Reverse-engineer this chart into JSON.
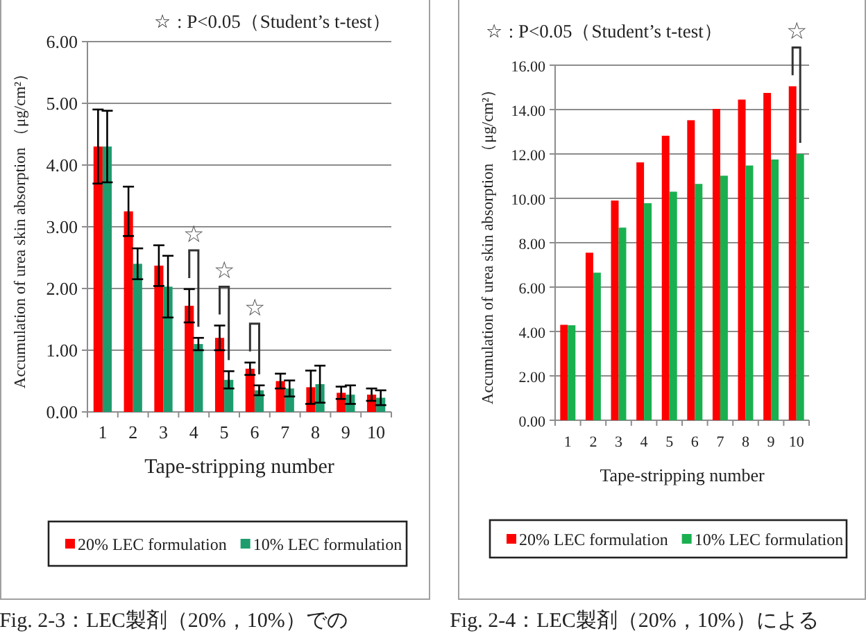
{
  "chart_data": [
    {
      "type": "bar",
      "categories": [
        "1",
        "2",
        "3",
        "4",
        "5",
        "6",
        "7",
        "8",
        "9",
        "10"
      ],
      "series": [
        {
          "name": "20% LEC formulation",
          "color": "#ff0000",
          "values": [
            4.3,
            3.25,
            2.37,
            1.72,
            1.2,
            0.7,
            0.5,
            0.4,
            0.31,
            0.28
          ],
          "errors": [
            0.6,
            0.4,
            0.33,
            0.27,
            0.2,
            0.1,
            0.12,
            0.27,
            0.1,
            0.1
          ]
        },
        {
          "name": "10% LEC formulation",
          "color": "#1e9c6e",
          "values": [
            4.3,
            2.4,
            2.03,
            1.1,
            0.52,
            0.35,
            0.38,
            0.45,
            0.28,
            0.23
          ],
          "errors": [
            0.58,
            0.25,
            0.5,
            0.1,
            0.14,
            0.08,
            0.13,
            0.3,
            0.15,
            0.12
          ]
        }
      ],
      "xlabel": "Tape-stripping number",
      "ylabel": "Accumulation of  urea  skin absorption  （μg/cm²）",
      "ylim": [
        0,
        6
      ],
      "yticks": [
        {
          "value": 0,
          "label": "0.00"
        },
        {
          "value": 1,
          "label": "1.00"
        },
        {
          "value": 2,
          "label": "2.00"
        },
        {
          "value": 3,
          "label": "3.00"
        },
        {
          "value": 4,
          "label": "4.00"
        },
        {
          "value": 5,
          "label": "5.00"
        },
        {
          "value": 6,
          "label": "6.00"
        }
      ],
      "grid": "y",
      "legend": "bottom",
      "annotations": [
        "☆ : P<0.05（Student’s t-test）",
        {
          "text": "☆",
          "x": "4",
          "y": 1.72
        },
        {
          "text": "☆",
          "x": "5",
          "y": 1.2
        },
        {
          "text": "☆",
          "x": "6",
          "y": 0.7
        },
        "Fig. 2-3：LEC製剤（20%，10%）での"
      ]
    },
    {
      "type": "bar",
      "categories": [
        "1",
        "2",
        "3",
        "4",
        "5",
        "6",
        "7",
        "8",
        "9",
        "10"
      ],
      "series": [
        {
          "name": "20% LEC formulation",
          "color": "#ff0000",
          "values": [
            4.3,
            7.55,
            9.9,
            11.62,
            12.82,
            13.52,
            14.03,
            14.45,
            14.75,
            15.05
          ]
        },
        {
          "name": "10% LEC formulation",
          "color": "#1ab050",
          "values": [
            4.28,
            6.65,
            8.68,
            9.78,
            10.3,
            10.65,
            11.02,
            11.48,
            11.75,
            12.0
          ]
        }
      ],
      "xlabel": "Tape-stripping number",
      "ylabel": "Accumulation of  urea  skin absorption  （μg/cm²）",
      "ylim": [
        0,
        16
      ],
      "yticks": [
        {
          "value": 0,
          "label": "0.00"
        },
        {
          "value": 2,
          "label": "2.00"
        },
        {
          "value": 4,
          "label": "4.00"
        },
        {
          "value": 6,
          "label": "6.00"
        },
        {
          "value": 8,
          "label": "8.00"
        },
        {
          "value": 10,
          "label": "10.00"
        },
        {
          "value": 12,
          "label": "12.00"
        },
        {
          "value": 14,
          "label": "14.00"
        },
        {
          "value": 16,
          "label": "16.00"
        }
      ],
      "grid": "y",
      "legend": "bottom",
      "annotations": [
        "☆ : P<0.05（Student’s t-test）",
        {
          "text": "☆",
          "x": "10",
          "y": 15.05
        },
        "Fig. 2-4：LEC製剤（20%，10%）による"
      ]
    }
  ]
}
